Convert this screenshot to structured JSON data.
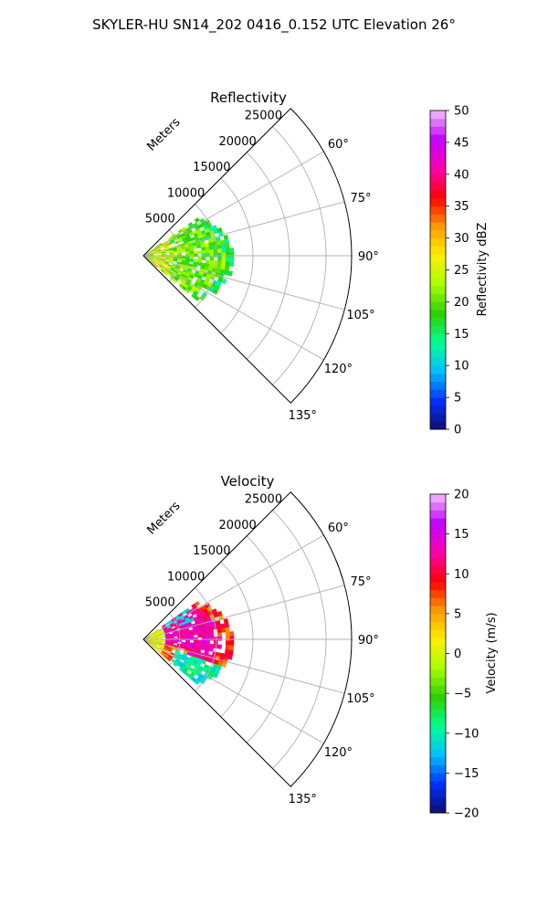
{
  "figure": {
    "suptitle": "SKYLER-HU  SN14_202  0416_0.152 UTC Elevation 26°"
  },
  "chart_data": [
    {
      "type": "heatmap",
      "projection": "polar-sector",
      "title": "Reflectivity",
      "range_label": "Meters",
      "radial_ticks": [
        5000,
        10000,
        15000,
        20000,
        25000
      ],
      "radial_tick_labels": [
        "5000",
        "10000",
        "15000",
        "20000",
        "25000"
      ],
      "rmax": 28500,
      "azimuth_range_deg": [
        45,
        135
      ],
      "azimuth_ticks_deg": [
        60,
        75,
        90,
        105,
        120,
        135
      ],
      "azimuth_tick_labels": [
        "60°",
        "75°",
        "90°",
        "105°",
        "120°",
        "135°"
      ],
      "grid": true,
      "data_extent": {
        "azimuth_deg": [
          55,
          130
        ],
        "range_m": [
          0,
          12000
        ]
      },
      "data_summary": {
        "dominant_range": [
          15,
          25
        ],
        "max_near_origin": 35
      },
      "palette": [
        "#0e0e6e",
        "#0030ff",
        "#00c0ff",
        "#00ff90",
        "#2ed000",
        "#a8ff00",
        "#ffef00",
        "#ff9a00",
        "#ff0000",
        "#ff00b0",
        "#c000ff",
        "#f3c0ff"
      ],
      "colorbar": {
        "label": "Reflectivity dBZ",
        "vmin": 0,
        "vmax": 50,
        "ticks": [
          0,
          5,
          10,
          15,
          20,
          25,
          30,
          35,
          40,
          45,
          50
        ],
        "tick_labels": [
          "0",
          "5",
          "10",
          "15",
          "20",
          "25",
          "30",
          "35",
          "40",
          "45",
          "50"
        ]
      }
    },
    {
      "type": "heatmap",
      "projection": "polar-sector",
      "title": "Velocity",
      "range_label": "Meters",
      "radial_ticks": [
        5000,
        10000,
        15000,
        20000,
        25000
      ],
      "radial_tick_labels": [
        "5000",
        "10000",
        "15000",
        "20000",
        "25000"
      ],
      "rmax": 28500,
      "azimuth_range_deg": [
        45,
        135
      ],
      "azimuth_ticks_deg": [
        60,
        75,
        90,
        105,
        120,
        135
      ],
      "azimuth_tick_labels": [
        "60°",
        "75°",
        "90°",
        "105°",
        "120°",
        "135°"
      ],
      "grid": true,
      "data_extent": {
        "azimuth_deg": [
          55,
          130
        ],
        "range_m": [
          0,
          12000
        ]
      },
      "data_summary": {
        "dominant_range": [
          10,
          15
        ],
        "near_origin": 0,
        "south_side": -10
      },
      "palette": [
        "#0e0e6e",
        "#0030ff",
        "#00c0ff",
        "#00ff90",
        "#2ed000",
        "#a8ff00",
        "#ffef00",
        "#ff9a00",
        "#ff0000",
        "#ff00b0",
        "#c000ff",
        "#f3c0ff"
      ],
      "colorbar": {
        "label": "Velocity (m/s)",
        "vmin": -20,
        "vmax": 20,
        "ticks": [
          -20,
          -15,
          -10,
          -5,
          0,
          5,
          10,
          15,
          20
        ],
        "tick_labels": [
          "−20",
          "−15",
          "−10",
          "−5",
          "0",
          "5",
          "10",
          "15",
          "20"
        ]
      }
    }
  ]
}
